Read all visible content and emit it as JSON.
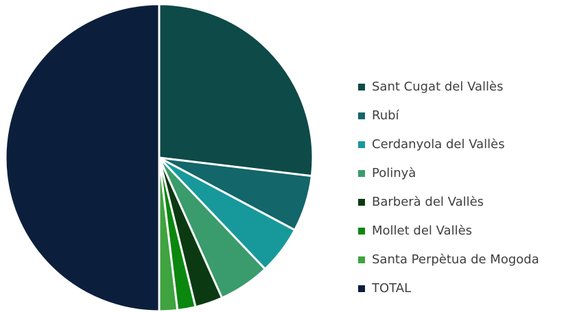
{
  "chart_data": {
    "type": "pie",
    "categories": [
      "Sant Cugat del Vallès",
      "Rubí",
      "Cerdanyola del Vallès",
      "Polinyà",
      "Barberà del Vallès",
      "Mollet del Vallès",
      "Santa Perpètua de Mogoda",
      "TOTAL"
    ],
    "values": [
      26.9,
      5.9,
      5.1,
      5.4,
      2.9,
      1.9,
      1.9,
      50
    ],
    "colors": [
      "#0e4a47",
      "#13666a",
      "#17999c",
      "#3a9b6c",
      "#0b3a12",
      "#0b870f",
      "#3fa33f",
      "#0b1f3c"
    ],
    "legend": "right"
  }
}
